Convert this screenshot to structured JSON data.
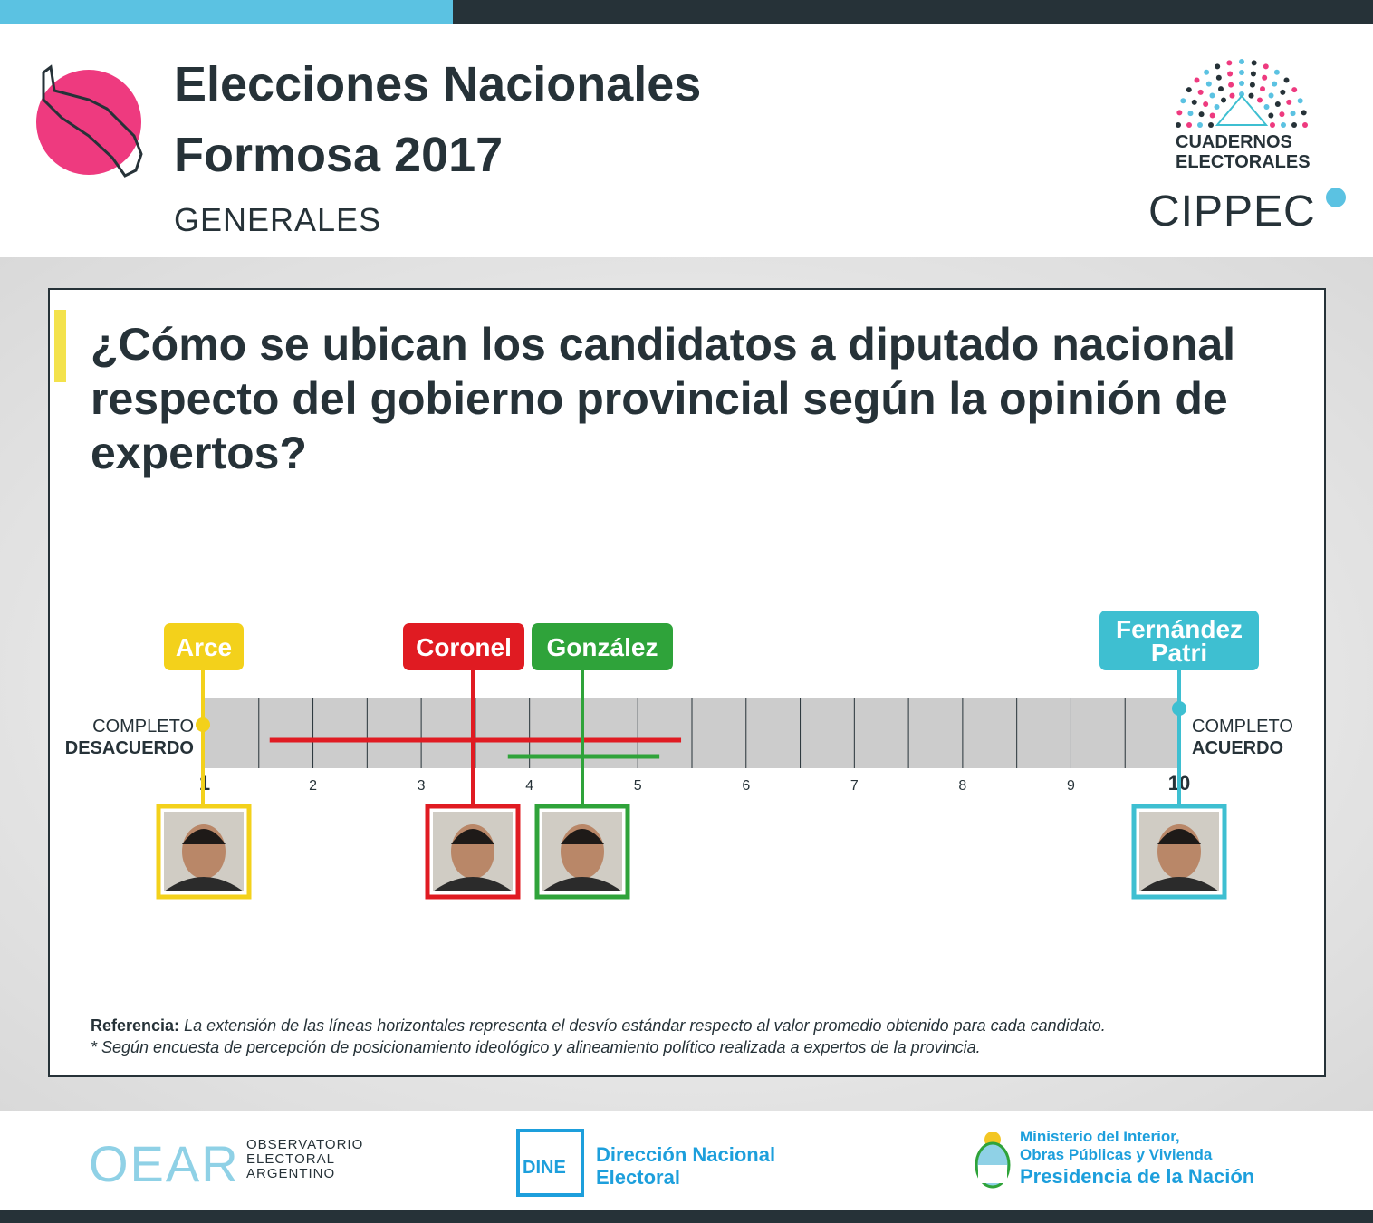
{
  "header": {
    "title_line1": "Elecciones Nacionales",
    "title_line2": "Formosa 2017",
    "subtitle": "GENERALES",
    "brand_line1": "CUADERNOS",
    "brand_line2": "ELECTORALES",
    "brand_org": "CIPPEC"
  },
  "question": "¿Cómo se ubican los candidatos a diputado nacional respecto del gobierno provincial según la opinión de expertos?",
  "scale": {
    "left_label_top": "COMPLETO",
    "left_label_bottom": "DESACUERDO",
    "right_label_top": "COMPLETO",
    "right_label_bottom": "ACUERDO"
  },
  "reference": {
    "label": "Referencia:",
    "text": "La extensión de las líneas horizontales representa el desvío estándar respecto al valor promedio obtenido para cada candidato.",
    "note": "* Según encuesta de percepción de posicionamiento ideológico y alineamiento político realizada a expertos de la provincia."
  },
  "footer": {
    "oear_logo": "OEAR",
    "oear_line1": "OBSERVATORIO",
    "oear_line2": "ELECTORAL",
    "oear_line3": "ARGENTINO",
    "dine_logo": "DINE",
    "dine_line1": "Dirección Nacional",
    "dine_line2": "Electoral",
    "ministry_line1": "Ministerio del Interior,",
    "ministry_line2": "Obras Públicas y Vivienda",
    "ministry_line3": "Presidencia de la Nación"
  },
  "chart_data": {
    "type": "scatter",
    "xlim": [
      1,
      10
    ],
    "ticks": [
      "1",
      "2",
      "3",
      "4",
      "5",
      "6",
      "7",
      "8",
      "9",
      "10"
    ],
    "series": [
      {
        "name": "Arce",
        "label_lines": [
          "Arce"
        ],
        "value": 1,
        "sd_range": null,
        "color": "#f3d11b"
      },
      {
        "name": "Coronel",
        "label_lines": [
          "Coronel"
        ],
        "value": 3.5,
        "sd_range": [
          1.6,
          5.4
        ],
        "color": "#e01b22"
      },
      {
        "name": "González",
        "label_lines": [
          "González"
        ],
        "value": 4.5,
        "sd_range": [
          3.8,
          5.2
        ],
        "color": "#2fa33a"
      },
      {
        "name": "Fernández Patri",
        "label_lines": [
          "Fernández",
          "Patri"
        ],
        "value": 10,
        "sd_range": null,
        "color": "#3ebfd1"
      }
    ]
  }
}
